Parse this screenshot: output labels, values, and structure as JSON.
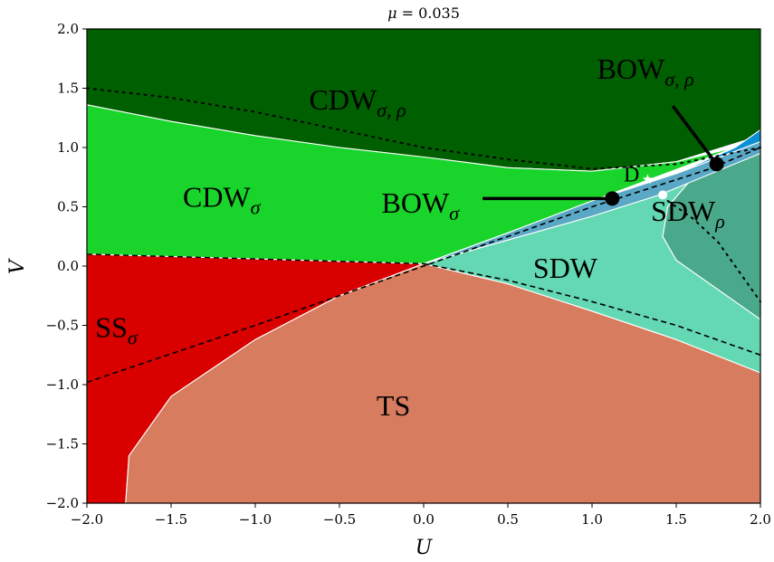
{
  "chart_data": {
    "type": "area",
    "title": {
      "var": "μ",
      "rest": " = 0.035"
    },
    "xlabel": "U",
    "ylabel": "V",
    "xlim": [
      -2.0,
      2.0
    ],
    "ylim": [
      -2.0,
      2.0
    ],
    "xticks": [
      "−2.0",
      "−1.5",
      "−1.0",
      "−0.5",
      "0.0",
      "0.5",
      "1.0",
      "1.5",
      "2.0"
    ],
    "yticks": [
      "−2.0",
      "−1.5",
      "−1.0",
      "−0.5",
      "0.0",
      "0.5",
      "1.0",
      "1.5",
      "2.0"
    ],
    "grid": false,
    "colors": {
      "CDW_sigma_rho": "#005f00",
      "CDW_sigma": "#19d42a",
      "SS_sigma": "#d90000",
      "TS": "#d77c5f",
      "SDW": "#63d8b2",
      "SDW_rho": "#4aa98a",
      "BOW_sigma": "#5aa8c5",
      "BOW_sigma_rho": "#0a8fd4"
    },
    "regions": [
      {
        "id": "CDW_sigma_rho",
        "base": "CDW",
        "sub": "σ, ρ",
        "polygon": [
          [
            -2,
            2
          ],
          [
            2,
            2
          ],
          [
            2,
            1.1
          ],
          [
            1.5,
            0.88
          ],
          [
            1.0,
            0.8
          ],
          [
            0.5,
            0.83
          ],
          [
            0,
            0.92
          ],
          [
            -0.5,
            1.0
          ],
          [
            -1.0,
            1.1
          ],
          [
            -1.5,
            1.22
          ],
          [
            -2,
            1.36
          ]
        ]
      },
      {
        "id": "CDW_sigma",
        "base": "CDW",
        "sub": "σ",
        "polygon": [
          [
            -2,
            1.36
          ],
          [
            -1.5,
            1.22
          ],
          [
            -1.0,
            1.1
          ],
          [
            -0.5,
            1.0
          ],
          [
            0,
            0.92
          ],
          [
            0.5,
            0.83
          ],
          [
            1.0,
            0.8
          ],
          [
            1.5,
            0.88
          ],
          [
            1.85,
            1.0
          ],
          [
            1.0,
            0.55
          ],
          [
            0.5,
            0.28
          ],
          [
            0,
            0.02
          ],
          [
            -0.5,
            0.04
          ],
          [
            -1.0,
            0.06
          ],
          [
            -1.5,
            0.08
          ],
          [
            -2,
            0.1
          ]
        ]
      },
      {
        "id": "SS_sigma",
        "base": "SS",
        "sub": "σ",
        "polygon": [
          [
            -2,
            0.1
          ],
          [
            -1.5,
            0.08
          ],
          [
            -1.0,
            0.06
          ],
          [
            -0.5,
            0.04
          ],
          [
            0,
            0.02
          ],
          [
            -0.5,
            -0.25
          ],
          [
            -1.0,
            -0.62
          ],
          [
            -1.5,
            -1.1
          ],
          [
            -1.75,
            -1.6
          ],
          [
            -1.77,
            -2.0
          ],
          [
            -2,
            -2.0
          ]
        ]
      },
      {
        "id": "TS",
        "base": "TS",
        "sub": "",
        "polygon": [
          [
            0,
            0.02
          ],
          [
            -0.5,
            -0.25
          ],
          [
            -1.0,
            -0.62
          ],
          [
            -1.5,
            -1.1
          ],
          [
            -1.75,
            -1.6
          ],
          [
            -1.77,
            -2.0
          ],
          [
            2,
            -2.0
          ],
          [
            2,
            -0.9
          ],
          [
            1.5,
            -0.62
          ],
          [
            1.0,
            -0.38
          ],
          [
            0.5,
            -0.15
          ]
        ]
      },
      {
        "id": "SDW",
        "base": "SDW",
        "sub": "",
        "polygon": [
          [
            0,
            0.02
          ],
          [
            0.5,
            -0.15
          ],
          [
            1.0,
            -0.38
          ],
          [
            1.5,
            -0.62
          ],
          [
            2,
            -0.9
          ],
          [
            2,
            -0.45
          ],
          [
            1.75,
            -0.2
          ],
          [
            1.5,
            0.05
          ],
          [
            1.42,
            0.25
          ],
          [
            1.45,
            0.5
          ],
          [
            1.6,
            0.75
          ],
          [
            2,
            0.95
          ],
          [
            1.4,
            0.6
          ],
          [
            1.0,
            0.42
          ],
          [
            0.5,
            0.22
          ]
        ]
      },
      {
        "id": "SDW_rho",
        "base": "SDW",
        "sub": "ρ",
        "polygon": [
          [
            2,
            -0.45
          ],
          [
            1.75,
            -0.2
          ],
          [
            1.5,
            0.05
          ],
          [
            1.42,
            0.25
          ],
          [
            1.45,
            0.5
          ],
          [
            1.6,
            0.75
          ],
          [
            2,
            0.95
          ]
        ]
      },
      {
        "id": "BOW_sigma",
        "base": "BOW",
        "sub": "σ",
        "polygon": [
          [
            0,
            0.02
          ],
          [
            0.5,
            0.22
          ],
          [
            1.0,
            0.42
          ],
          [
            1.4,
            0.6
          ],
          [
            2,
            0.95
          ],
          [
            2,
            1.05
          ],
          [
            1.5,
            0.78
          ],
          [
            1.0,
            0.55
          ],
          [
            0.5,
            0.28
          ]
        ]
      },
      {
        "id": "BOW_sigma_rho",
        "base": "BOW",
        "sub": "σ, ρ",
        "polygon": [
          [
            1.5,
            0.78
          ],
          [
            2,
            1.05
          ],
          [
            2,
            1.15
          ],
          [
            1.85,
            1.0
          ]
        ]
      }
    ],
    "boundaries_dashed": [
      {
        "points": [
          [
            -2,
            -0.98
          ],
          [
            -1,
            -0.5
          ],
          [
            0,
            0.0
          ],
          [
            1,
            0.5
          ],
          [
            1.7,
            0.82
          ],
          [
            2,
            1.0
          ]
        ],
        "width": 1.6
      },
      {
        "points": [
          [
            0,
            0.02
          ],
          [
            0.5,
            -0.12
          ],
          [
            1.0,
            -0.3
          ],
          [
            1.5,
            -0.5
          ],
          [
            2,
            -0.75
          ]
        ],
        "width": 1.6
      },
      {
        "points": [
          [
            -2,
            0.1
          ],
          [
            -1.5,
            0.08
          ],
          [
            -1.0,
            0.06
          ],
          [
            -0.5,
            0.04
          ],
          [
            0,
            0.02
          ]
        ],
        "width": 1.4
      }
    ],
    "boundaries_dotted": [
      {
        "points": [
          [
            -2,
            1.5
          ],
          [
            -1.5,
            1.42
          ],
          [
            -1.0,
            1.3
          ],
          [
            -0.5,
            1.15
          ],
          [
            0,
            1.0
          ],
          [
            0.5,
            0.9
          ],
          [
            1.0,
            0.82
          ],
          [
            1.5,
            0.86
          ],
          [
            2,
            1.0
          ]
        ]
      },
      {
        "points": [
          [
            1.45,
            0.55
          ],
          [
            1.6,
            0.4
          ],
          [
            1.75,
            0.2
          ],
          [
            1.85,
            0.0
          ],
          [
            1.95,
            -0.2
          ],
          [
            2,
            -0.3
          ]
        ]
      }
    ],
    "region_labels": [
      {
        "base": "CDW",
        "sub": "σ, ρ",
        "x": -0.68,
        "y": 1.32
      },
      {
        "base": "CDW",
        "sub": "σ",
        "x": -1.43,
        "y": 0.5
      },
      {
        "base": "SS",
        "sub": "σ",
        "x": -1.95,
        "y": -0.6
      },
      {
        "base": "TS",
        "sub": "",
        "x": -0.28,
        "y": -1.26
      },
      {
        "base": "SDW",
        "sub": "",
        "x": 0.65,
        "y": -0.1
      },
      {
        "base": "SDW",
        "sub": "ρ",
        "x": 1.35,
        "y": 0.38
      },
      {
        "base": "BOW",
        "sub": "σ",
        "x": -0.25,
        "y": 0.45
      },
      {
        "base": "BOW",
        "sub": "σ, ρ",
        "x": 1.03,
        "y": 1.58
      }
    ],
    "special_points": [
      {
        "label": "D",
        "x": 1.33,
        "y": 0.73,
        "color": "#ffffff",
        "marker": "star"
      },
      {
        "label": "",
        "x": 1.42,
        "y": 0.6,
        "color": "#ffffff",
        "marker": "dot"
      },
      {
        "label": "",
        "x": 1.12,
        "y": 0.57,
        "color": "#000000",
        "marker": "big-dot",
        "arrow_to": [
          0.35,
          0.57
        ]
      },
      {
        "label": "",
        "x": 1.74,
        "y": 0.86,
        "color": "#000000",
        "marker": "big-dot",
        "arrow_to": [
          1.48,
          1.35
        ]
      }
    ]
  }
}
